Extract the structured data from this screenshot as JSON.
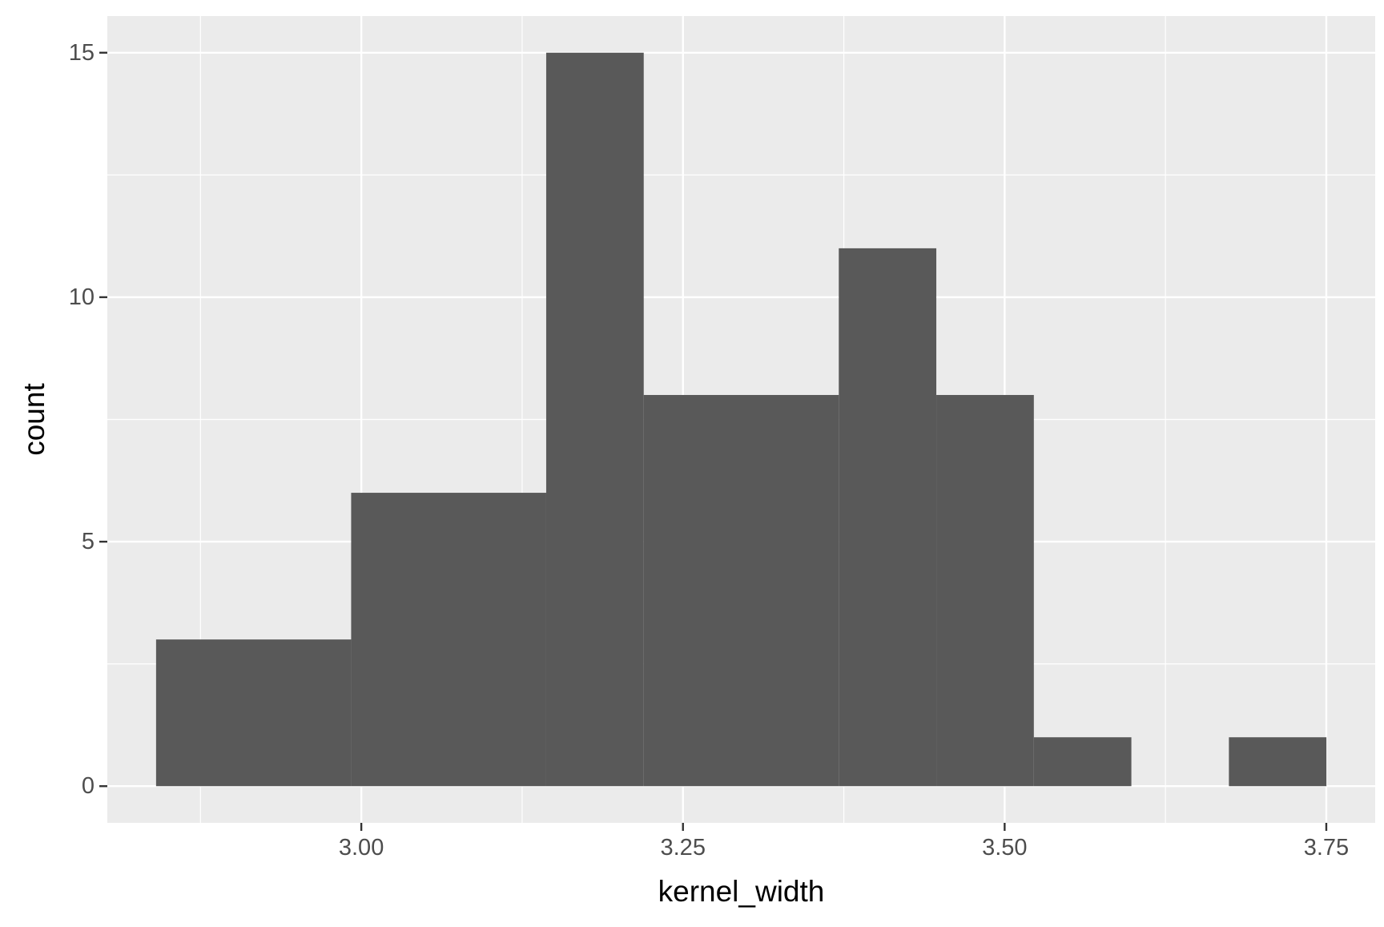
{
  "chart_data": {
    "type": "bar",
    "subtype": "histogram",
    "xlabel": "kernel_width",
    "ylabel": "count",
    "bins": [
      {
        "x_start": 2.8405,
        "x_end": 2.9921,
        "count": 3
      },
      {
        "x_start": 2.9921,
        "x_end": 3.1437,
        "count": 6
      },
      {
        "x_start": 3.1437,
        "x_end": 3.2195,
        "count": 15
      },
      {
        "x_start": 3.2195,
        "x_end": 3.3711,
        "count": 8
      },
      {
        "x_start": 3.3711,
        "x_end": 3.4469,
        "count": 11
      },
      {
        "x_start": 3.4469,
        "x_end": 3.5227,
        "count": 8
      },
      {
        "x_start": 3.5227,
        "x_end": 3.5985,
        "count": 1
      },
      {
        "x_start": 3.5985,
        "x_end": 3.6743,
        "count": 0
      },
      {
        "x_start": 3.6743,
        "x_end": 3.7501,
        "count": 1
      }
    ],
    "x_ticks": [
      {
        "value": 3.0,
        "label": "3.00"
      },
      {
        "value": 3.25,
        "label": "3.25"
      },
      {
        "value": 3.5,
        "label": "3.50"
      },
      {
        "value": 3.75,
        "label": "3.75"
      }
    ],
    "x_minor_ticks": [
      2.875,
      3.125,
      3.375,
      3.625
    ],
    "y_ticks": [
      {
        "value": 0,
        "label": "0"
      },
      {
        "value": 5,
        "label": "5"
      },
      {
        "value": 10,
        "label": "10"
      },
      {
        "value": 15,
        "label": "15"
      }
    ],
    "y_minor_ticks": [
      2.5,
      7.5,
      12.5
    ],
    "xlim": [
      2.8026,
      3.788
    ],
    "ylim": [
      -0.75,
      15.75
    ],
    "grid": true,
    "colors": {
      "bar": "#595959",
      "panel_background": "#EBEBEB",
      "grid": "#FFFFFF",
      "tick_label": "#4D4D4D",
      "axis_title": "#000000"
    }
  }
}
